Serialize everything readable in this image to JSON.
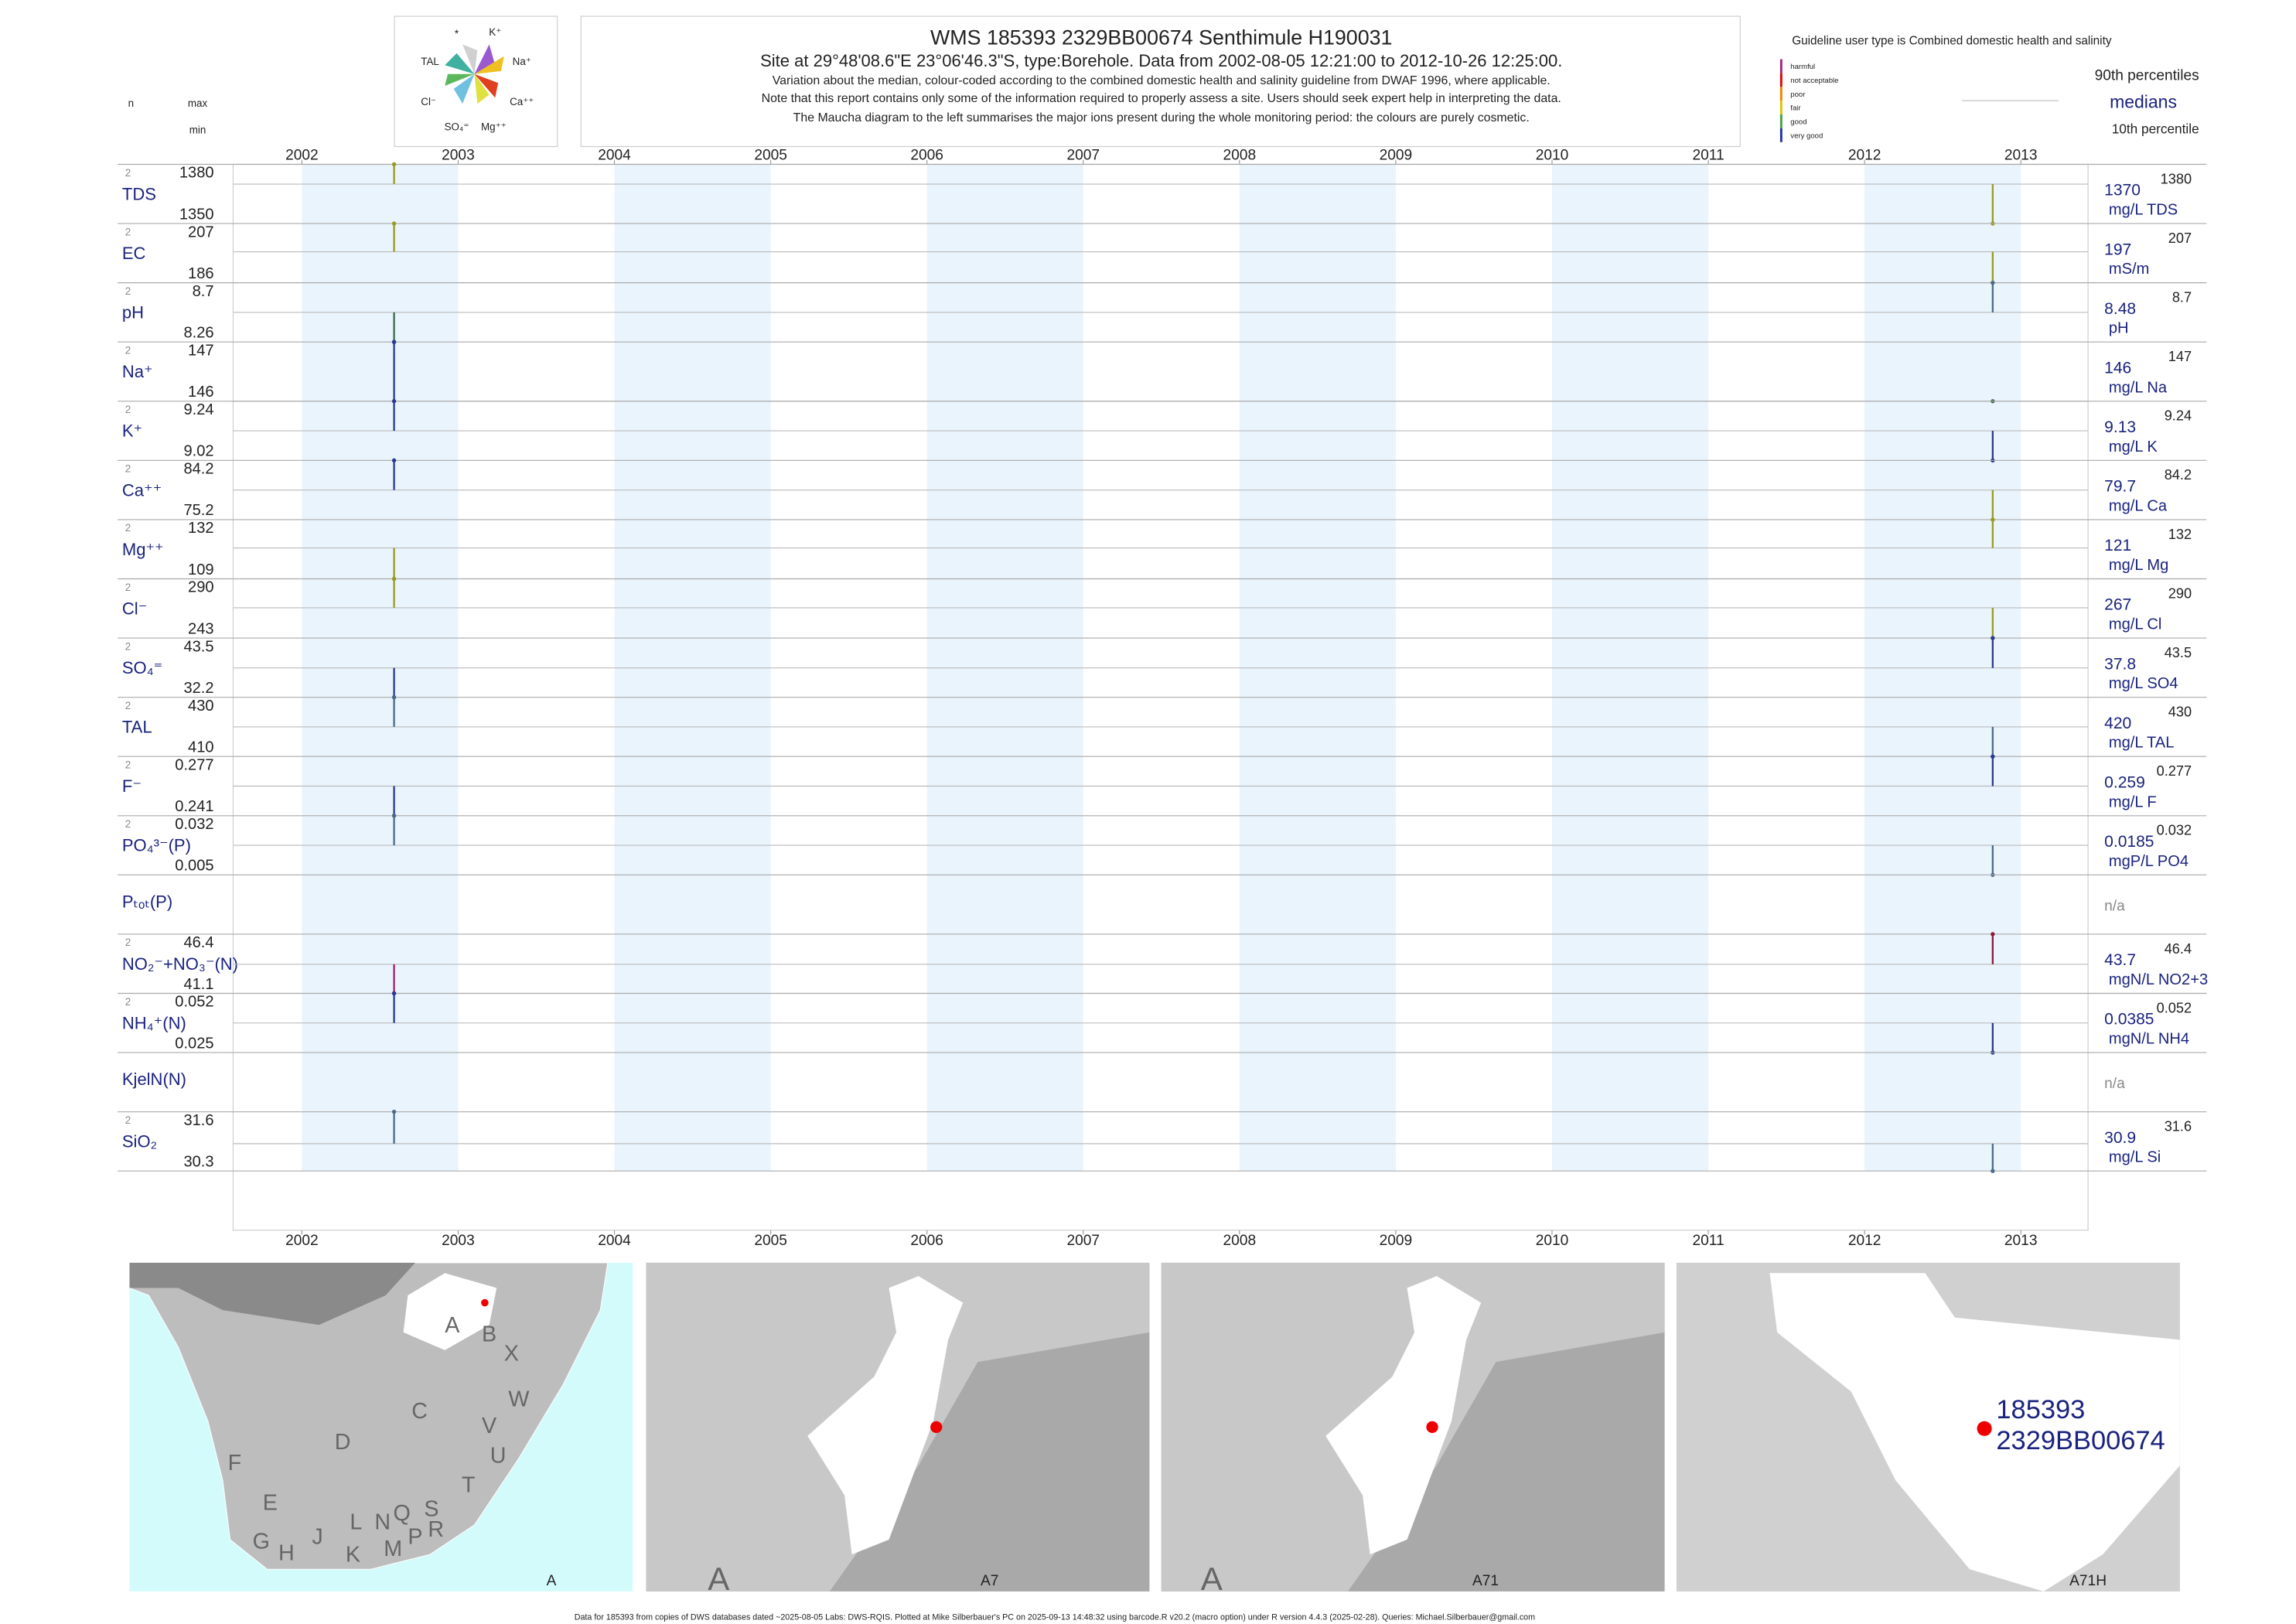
{
  "header": {
    "title": "WMS 185393 2329BB00674 Senthimule H190031",
    "subtitle": "Site at 29°48'08.6\"E 23°06'46.3\"S, type:Borehole.  Data from 2002-08-05 12:21:00 to 2012-10-26 12:25:00.",
    "notes": [
      "Variation about the median,  colour-coded according to the combined domestic health and salinity guideline from DWAF 1996, where applicable.",
      "Note that this report contains only some of the information required to properly assess a site. Users should seek expert help in interpreting the data.",
      "The Maucha diagram to the left summarises the major ions present during the whole monitoring period: the colours are purely cosmetic."
    ]
  },
  "maucha": {
    "labels": [
      "*",
      "K⁺",
      "TAL",
      "Na⁺",
      "Cl⁻",
      "Ca⁺⁺",
      "SO₄⁼",
      "Mg⁺⁺"
    ]
  },
  "guideline": {
    "title": "Guideline user type is Combined domestic health and salinity",
    "classes": [
      {
        "name": "harmful",
        "color": "#a0208a"
      },
      {
        "name": "not acceptable",
        "color": "#e00000"
      },
      {
        "name": "poor",
        "color": "#f08000"
      },
      {
        "name": "fair",
        "color": "#e0c000"
      },
      {
        "name": "good",
        "color": "#40a040"
      },
      {
        "name": "very good",
        "color": "#2030a0"
      }
    ],
    "p90": "90th percentiles",
    "median": "medians",
    "p10": "10th percentile"
  },
  "left_header": {
    "n": "n",
    "max": "max",
    "min": "min"
  },
  "chart_data": {
    "type": "strip",
    "xlim": [
      2001.56,
      2013.43
    ],
    "xticks": [
      2002,
      2003,
      2004,
      2005,
      2006,
      2007,
      2008,
      2009,
      2010,
      2011,
      2012,
      2013
    ],
    "sample_x": [
      2002.59,
      2012.82
    ],
    "rows": [
      {
        "name": "TDS",
        "n": 2,
        "max": 1380,
        "min": 1350,
        "median": 1370,
        "unit": "mg/L TDS",
        "values": [
          1380,
          1350
        ],
        "colors": [
          "#9a9a20",
          "#9a9a20"
        ]
      },
      {
        "name": "EC",
        "n": 2,
        "max": 207,
        "min": 186,
        "median": 197,
        "unit": "mS/m",
        "values": [
          207,
          186
        ],
        "colors": [
          "#9a9a20",
          "#9a9a20"
        ]
      },
      {
        "name": "pH",
        "n": 2,
        "max": 8.7,
        "min": 8.26,
        "median": 8.48,
        "unit": "pH",
        "values": [
          8.26,
          8.7
        ],
        "colors": [
          "#3a6a50",
          "#4a6a8a"
        ]
      },
      {
        "name": "Na⁺",
        "n": 2,
        "max": 147,
        "min": 146,
        "median": 146,
        "unit": "mg/L Na",
        "values": [
          147,
          146
        ],
        "colors": [
          "#2b3990",
          "#3a6a50"
        ]
      },
      {
        "name": "K⁺",
        "n": 2,
        "max": 9.24,
        "min": 9.02,
        "median": 9.13,
        "unit": "mg/L K",
        "values": [
          9.24,
          9.02
        ],
        "colors": [
          "#2b3990",
          "#2b3990"
        ]
      },
      {
        "name": "Ca⁺⁺",
        "n": 2,
        "max": 84.2,
        "min": 75.2,
        "median": 79.7,
        "unit": "mg/L Ca",
        "values": [
          84.2,
          75.2
        ],
        "colors": [
          "#2b3990",
          "#9a9a20"
        ]
      },
      {
        "name": "Mg⁺⁺",
        "n": 2,
        "max": 132,
        "min": 109,
        "median": 121,
        "unit": "mg/L Mg",
        "values": [
          109,
          132
        ],
        "colors": [
          "#9a9a20",
          "#9a9a20"
        ]
      },
      {
        "name": "Cl⁻",
        "n": 2,
        "max": 290,
        "min": 243,
        "median": 267,
        "unit": "mg/L Cl",
        "values": [
          290,
          243
        ],
        "colors": [
          "#9a9a20",
          "#9a9a20"
        ]
      },
      {
        "name": "SO₄⁼",
        "n": 2,
        "max": 43.5,
        "min": 32.2,
        "median": 37.8,
        "unit": "mg/L SO4",
        "values": [
          32.2,
          43.5
        ],
        "colors": [
          "#2b3990",
          "#2b3990"
        ]
      },
      {
        "name": "TAL",
        "n": 2,
        "max": 430,
        "min": 410,
        "median": 420,
        "unit": "mg/L TAL",
        "values": [
          430,
          410
        ],
        "colors": [
          "#4a6a8a",
          "#4a6a8a"
        ]
      },
      {
        "name": "F⁻",
        "n": 2,
        "max": 0.277,
        "min": 0.241,
        "median": 0.259,
        "unit": "mg/L F",
        "values": [
          0.241,
          0.277
        ],
        "colors": [
          "#2b3990",
          "#2b3990"
        ]
      },
      {
        "name": "PO₄³⁻(P)",
        "n": 2,
        "max": 0.032,
        "min": 0.005,
        "median": 0.0185,
        "unit": "mgP/L PO4",
        "values": [
          0.032,
          0.005
        ],
        "colors": [
          "#4a6a8a",
          "#4a6a8a"
        ]
      },
      {
        "name": "Pₜₒₜ(P)",
        "text": "n/a"
      },
      {
        "name": "NO₂⁻+NO₃⁻(N)",
        "n": 2,
        "max": 46.4,
        "min": 41.1,
        "median": 43.7,
        "unit": "mgN/L NO2+3",
        "values": [
          41.1,
          46.4
        ],
        "colors": [
          "#a0206a",
          "#8b1a3a"
        ]
      },
      {
        "name": "NH₄⁺(N)",
        "n": 2,
        "max": 0.052,
        "min": 0.025,
        "median": 0.0385,
        "unit": "mgN/L NH4",
        "values": [
          0.052,
          0.025
        ],
        "colors": [
          "#2b3990",
          "#2b3990"
        ]
      },
      {
        "name": "KjelN(N)",
        "text": "n/a"
      },
      {
        "name": "SiO₂",
        "n": 2,
        "max": 31.6,
        "min": 30.3,
        "median": 30.9,
        "unit": "mg/L Si",
        "values": [
          31.6,
          30.3
        ],
        "colors": [
          "#4a6a8a",
          "#4a6a8a"
        ]
      }
    ]
  },
  "maps": [
    {
      "caption": "A",
      "letters": [
        "A",
        "B",
        "X",
        "C",
        "W",
        "D",
        "V",
        "U",
        "F",
        "T",
        "E",
        "S",
        "R",
        "Q",
        "N",
        "L",
        "G",
        "H",
        "J",
        "K",
        "M",
        "P"
      ]
    },
    {
      "caption": "A7",
      "letters": [
        "A"
      ]
    },
    {
      "caption": "A71",
      "letters": [
        "A"
      ]
    },
    {
      "caption": "A71H",
      "labels": [
        "185393",
        "2329BB00674"
      ]
    }
  ],
  "footer": "Data for 185393 from copies of DWS databases dated ~2025-08-05 Labs: DWS-RQIS. Plotted at Mike Silberbauer's PC on 2025-09-13 14:48:32 using barcode.R v20.2 (macro option) under R version 4.4.3 (2025-02-28). Queries: Michael.Silberbauer@gmail.com"
}
